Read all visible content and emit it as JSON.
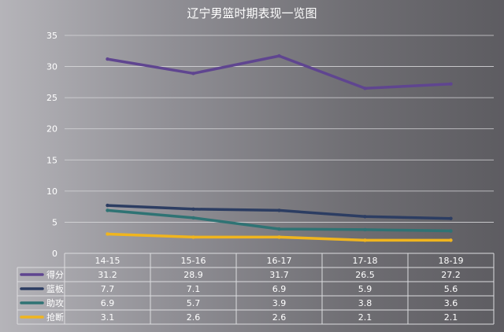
{
  "chart_data": {
    "type": "line",
    "title": "辽宁男篮时期表现一览图",
    "categories": [
      "14-15",
      "15-16",
      "16-17",
      "17-18",
      "18-19"
    ],
    "ylim": [
      0,
      35
    ],
    "yticks": [
      0,
      5,
      10,
      15,
      20,
      25,
      30,
      35
    ],
    "grid": true,
    "legend": "data-table",
    "series": [
      {
        "name": "得分",
        "color": "#5f4590",
        "values": [
          31.2,
          28.9,
          31.7,
          26.5,
          27.2
        ],
        "labels": [
          "31.2",
          "28.9",
          "31.7",
          "26.5",
          "27.2"
        ]
      },
      {
        "name": "篮板",
        "color": "#2c3d62",
        "values": [
          7.7,
          7.1,
          6.9,
          5.9,
          5.6
        ],
        "labels": [
          "7.7",
          "7.1",
          "6.9",
          "5.9",
          "5.6"
        ]
      },
      {
        "name": "助攻",
        "color": "#2f7374",
        "values": [
          6.9,
          5.7,
          3.9,
          3.8,
          3.6
        ],
        "labels": [
          "6.9",
          "5.7",
          "3.9",
          "3.8",
          "3.6"
        ]
      },
      {
        "name": "抢断",
        "color": "#f0b51e",
        "values": [
          3.1,
          2.6,
          2.6,
          2.1,
          2.1
        ],
        "labels": [
          "3.1",
          "2.6",
          "2.6",
          "2.1",
          "2.1"
        ]
      }
    ]
  }
}
